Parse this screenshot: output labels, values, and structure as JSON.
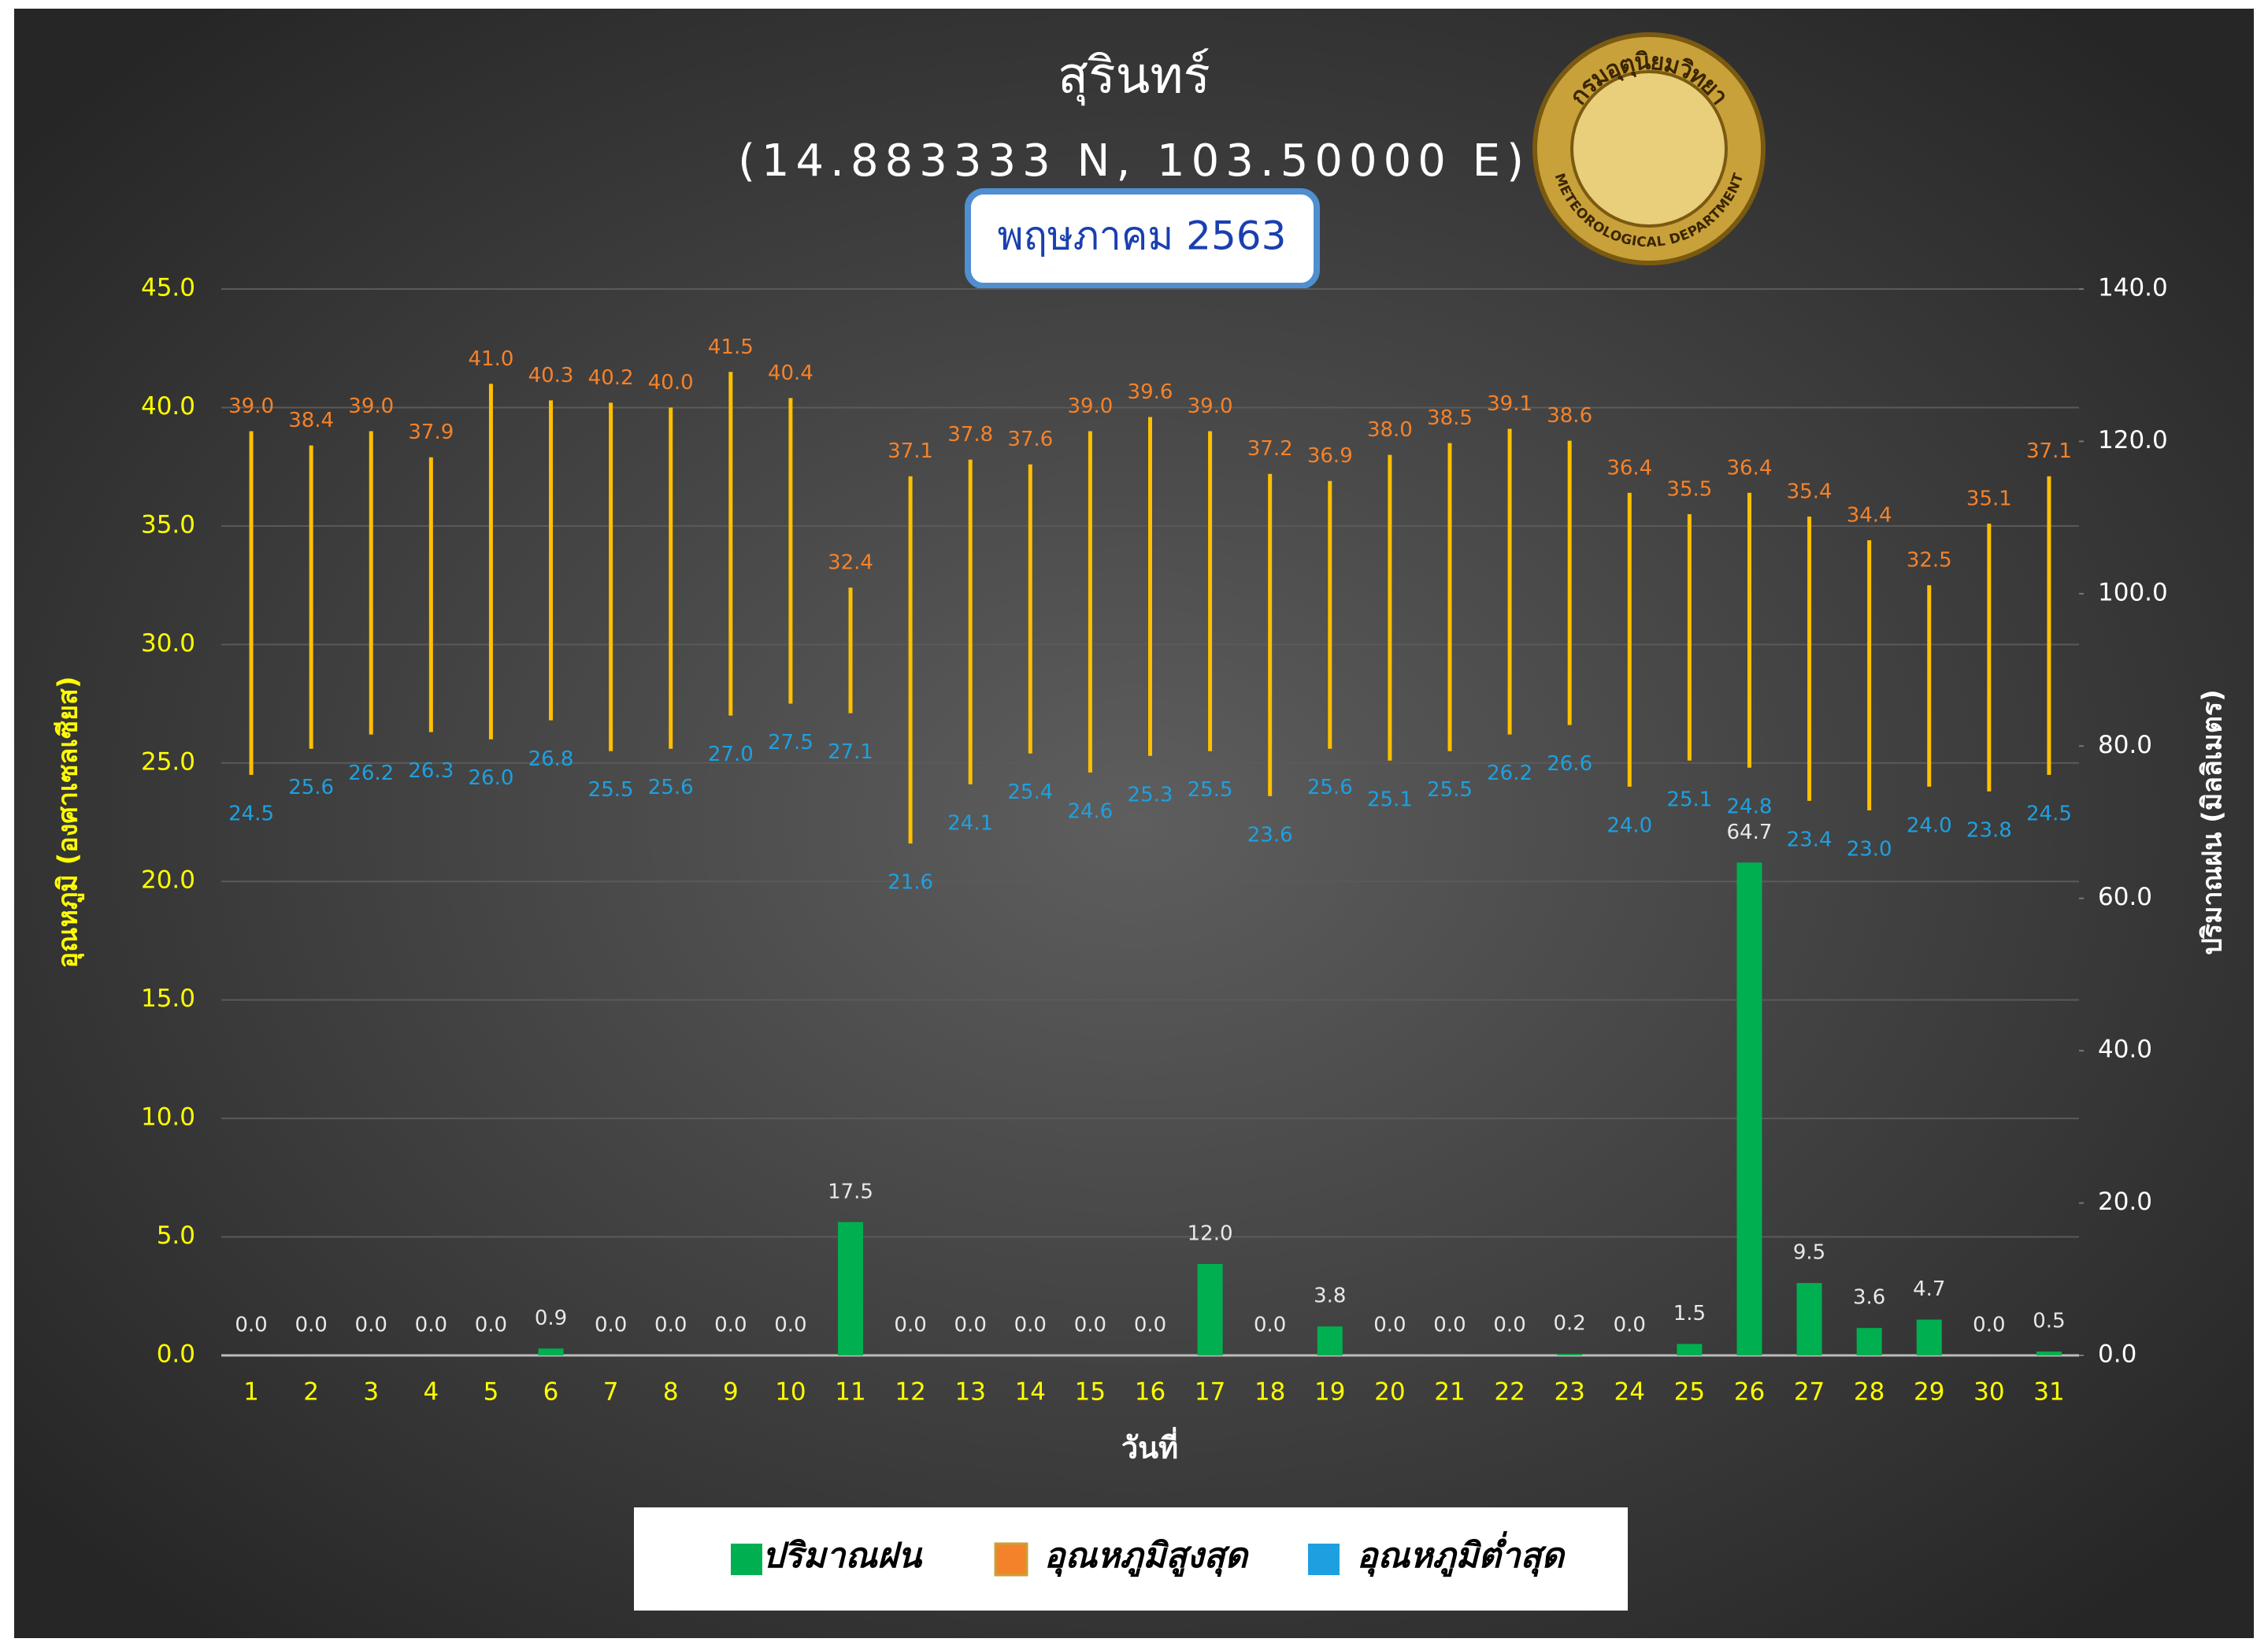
{
  "chart_data": {
    "type": "bar",
    "title": "สุรินทร์",
    "subtitle": "(14.883333 N, 103.50000 E)",
    "period": "พฤษภาคม 2563",
    "logo": {
      "top": "กรมอุตุนิยมวิทยา",
      "bottom": "METEOROLOGICAL DEPARTMENT"
    },
    "x_label": "วันที่",
    "y_label": "อุณหภูมิ (องศาเซลเซียส)",
    "y2_label": "ปริมาณฝน (มิลลิเมตร)",
    "categories": [
      "1",
      "2",
      "3",
      "4",
      "5",
      "6",
      "7",
      "8",
      "9",
      "10",
      "11",
      "12",
      "13",
      "14",
      "15",
      "16",
      "17",
      "18",
      "19",
      "20",
      "21",
      "22",
      "23",
      "24",
      "25",
      "26",
      "27",
      "28",
      "29",
      "30",
      "31"
    ],
    "series": [
      {
        "name": "ปริมาณฝน",
        "color": "#00b050",
        "axis": "y2",
        "values": [
          0,
          0,
          0,
          0,
          0,
          0.9,
          0,
          0,
          0,
          0,
          17.5,
          0,
          0,
          0,
          0,
          0,
          12,
          0,
          3.8,
          0,
          0,
          0,
          0.2,
          0,
          1.5,
          64.7,
          9.5,
          3.6,
          4.7,
          0,
          0.5
        ],
        "value_labels": [
          "0.0",
          "0.0",
          "0.0",
          "0.0",
          "0.0",
          "0.9",
          "0.0",
          "0.0",
          "0.0",
          "0.0",
          "17.5",
          "0.0",
          "0.0",
          "0.0",
          "0.0",
          "0.0",
          "12.0",
          "0.0",
          "3.8",
          "0.0",
          "0.0",
          "0.0",
          "0.2",
          "0.0",
          "1.5",
          "64.7",
          "9.5",
          "3.6",
          "4.7",
          "0.0",
          "0.5"
        ]
      },
      {
        "name": "อุณหภูมิสูงสุด",
        "color": "#f4822a",
        "values": [
          39,
          38.4,
          39,
          37.9,
          41,
          40.3,
          40.2,
          40,
          41.5,
          40.4,
          32.4,
          37.1,
          37.8,
          37.6,
          39,
          39.6,
          39,
          37.2,
          36.9,
          38,
          38.5,
          39.1,
          38.6,
          36.4,
          35.5,
          36.4,
          35.4,
          34.4,
          32.5,
          35.1,
          37.1
        ],
        "value_labels": [
          "39.0",
          "38.4",
          "39.0",
          "37.9",
          "41.0",
          "40.3",
          "40.2",
          "40.0",
          "41.5",
          "40.4",
          "32.4",
          "37.1",
          "37.8",
          "37.6",
          "39.0",
          "39.6",
          "39.0",
          "37.2",
          "36.9",
          "38.0",
          "38.5",
          "39.1",
          "38.6",
          "36.4",
          "35.5",
          "36.4",
          "35.4",
          "34.4",
          "32.5",
          "35.1",
          "37.1"
        ]
      },
      {
        "name": "อุณหภูมิต่ำสุด",
        "color": "#1ea0e0",
        "values": [
          24.5,
          25.6,
          26.2,
          26.3,
          26,
          26.8,
          25.5,
          25.6,
          27,
          27.5,
          27.1,
          21.6,
          24.1,
          25.4,
          24.6,
          25.3,
          25.5,
          23.6,
          25.6,
          25.1,
          25.5,
          26.2,
          26.6,
          24,
          25.1,
          24.8,
          23.4,
          23,
          24,
          23.8,
          24.5
        ],
        "value_labels": [
          "24.5",
          "25.6",
          "26.2",
          "26.3",
          "26.0",
          "26.8",
          "25.5",
          "25.6",
          "27.0",
          "27.5",
          "27.1",
          "21.6",
          "24.1",
          "25.4",
          "24.6",
          "25.3",
          "25.5",
          "23.6",
          "25.6",
          "25.1",
          "25.5",
          "26.2",
          "26.6",
          "24.0",
          "25.1",
          "24.8",
          "23.4",
          "23.0",
          "24.0",
          "23.8",
          "24.5"
        ]
      }
    ],
    "range_color": "#ffc000",
    "ylim": [
      0,
      45
    ],
    "yticks": [
      {
        "value": 0,
        "label": "0.0"
      },
      {
        "value": 5,
        "label": "5.0"
      },
      {
        "value": 10,
        "label": "10.0"
      },
      {
        "value": 15,
        "label": "15.0"
      },
      {
        "value": 20,
        "label": "20.0"
      },
      {
        "value": 25,
        "label": "25.0"
      },
      {
        "value": 30,
        "label": "30.0"
      },
      {
        "value": 35,
        "label": "35.0"
      },
      {
        "value": 40,
        "label": "40.0"
      },
      {
        "value": 45,
        "label": "45.0"
      }
    ],
    "y2lim": [
      0,
      140
    ],
    "y2ticks": [
      {
        "value": 0,
        "label": "0.0"
      },
      {
        "value": 20,
        "label": "20.0"
      },
      {
        "value": 40,
        "label": "40.0"
      },
      {
        "value": 60,
        "label": "60.0"
      },
      {
        "value": 80,
        "label": "80.0"
      },
      {
        "value": 100,
        "label": "100.0"
      },
      {
        "value": 120,
        "label": "120.0"
      },
      {
        "value": 140,
        "label": "140.0"
      }
    ],
    "grid": true,
    "legend": "bottom"
  }
}
